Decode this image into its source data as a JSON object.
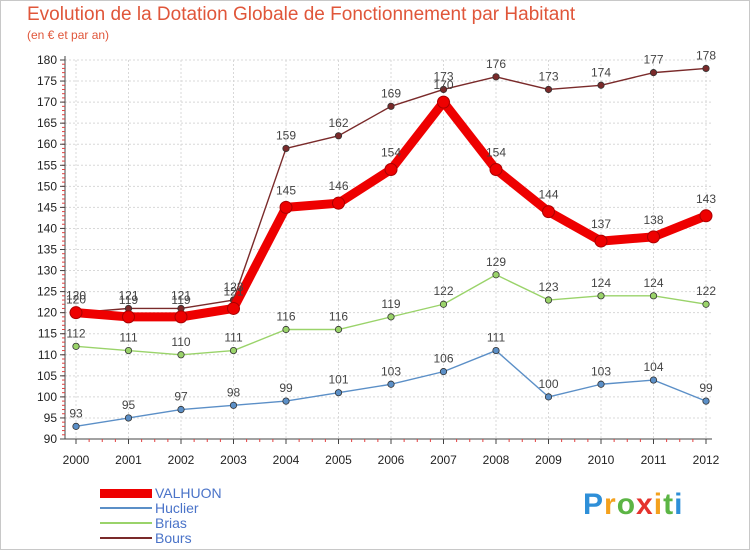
{
  "header": {
    "title": "Evolution de la Dotation Globale de Fonctionnement par Habitant",
    "subtitle": "(en € et par an)"
  },
  "chart_data": {
    "type": "line",
    "x": [
      "2000",
      "2001",
      "2002",
      "2003",
      "2004",
      "2005",
      "2006",
      "2007",
      "2008",
      "2009",
      "2010",
      "2011",
      "2012"
    ],
    "ylim": [
      90,
      180
    ],
    "yticks": [
      90,
      95,
      100,
      105,
      110,
      115,
      120,
      125,
      130,
      135,
      140,
      145,
      150,
      155,
      160,
      165,
      170,
      175,
      180
    ],
    "grid": true,
    "legend_position": "bottom-left",
    "series": [
      {
        "name": "VALHUON",
        "color": "#ee0000",
        "values": [
          120,
          119,
          119,
          121,
          145,
          146,
          154,
          170,
          154,
          144,
          137,
          138,
          143
        ]
      },
      {
        "name": "Huclier",
        "color": "#5b8fc7",
        "values": [
          93,
          95,
          97,
          98,
          99,
          101,
          103,
          106,
          111,
          100,
          103,
          104,
          99
        ]
      },
      {
        "name": "Brias",
        "color": "#9ad36a",
        "values": [
          112,
          111,
          110,
          111,
          116,
          116,
          119,
          122,
          129,
          123,
          124,
          124,
          122
        ]
      },
      {
        "name": "Bours",
        "color": "#7a2a2a",
        "values": [
          120,
          121,
          121,
          123,
          159,
          162,
          169,
          173,
          176,
          173,
          174,
          177,
          178
        ]
      }
    ]
  },
  "logo": {
    "letters": [
      "P",
      "r",
      "o",
      "x",
      "i",
      "t",
      "i"
    ],
    "colors": [
      "#2e8fd8",
      "#f4a11d",
      "#5cb545",
      "#e5322d",
      "#f4a11d",
      "#5cb545",
      "#2e8fd8"
    ]
  }
}
